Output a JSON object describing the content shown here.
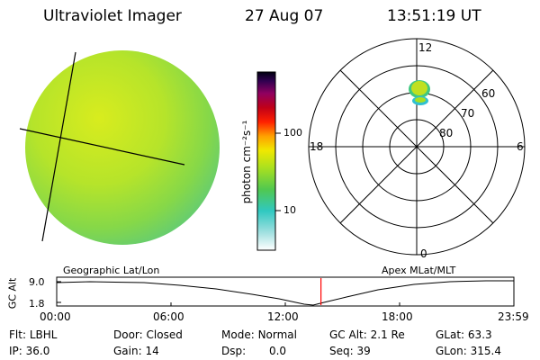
{
  "header": {
    "instrument": "Ultraviolet Imager",
    "date": "27 Aug 07",
    "time": "13:51:19 UT"
  },
  "colorbar": {
    "unit_label": "photon cm⁻²s⁻¹",
    "ticks": [
      "100",
      "10"
    ]
  },
  "polar": {
    "mlt_labels": {
      "top": "12",
      "left": "18",
      "right": "6",
      "bottom": "0"
    },
    "lat_labels": [
      "60",
      "70",
      "80"
    ]
  },
  "timeline": {
    "left_title": "Geographic Lat/Lon",
    "right_title": "Apex MLat/MLT",
    "y_axis_label": "GC Alt",
    "y_ticks": [
      "9.0",
      "1.8"
    ],
    "x_ticks": [
      "00:00",
      "06:00",
      "12:00",
      "18:00",
      "23:59"
    ],
    "current_time_fraction": 0.578,
    "marker_color": "#ff0000"
  },
  "info": {
    "flt_label": "Flt:",
    "flt_value": "LBHL",
    "ip_label": "IP:",
    "ip_value": "36.0",
    "door_label": "Door:",
    "door_value": "Closed",
    "gain_label": "Gain:",
    "gain_value": "14",
    "mode_label": "Mode:",
    "mode_value": "Normal",
    "dsp_label": "Dsp:",
    "dsp_value": "0.0",
    "gcalt_label": "GC Alt:",
    "gcalt_value": "2.1 Re",
    "seq_label": "Seq:",
    "seq_value": "39",
    "glat_label": "GLat:",
    "glat_value": "63.3",
    "glon_label": "GLon:",
    "glon_value": "315.4"
  }
}
